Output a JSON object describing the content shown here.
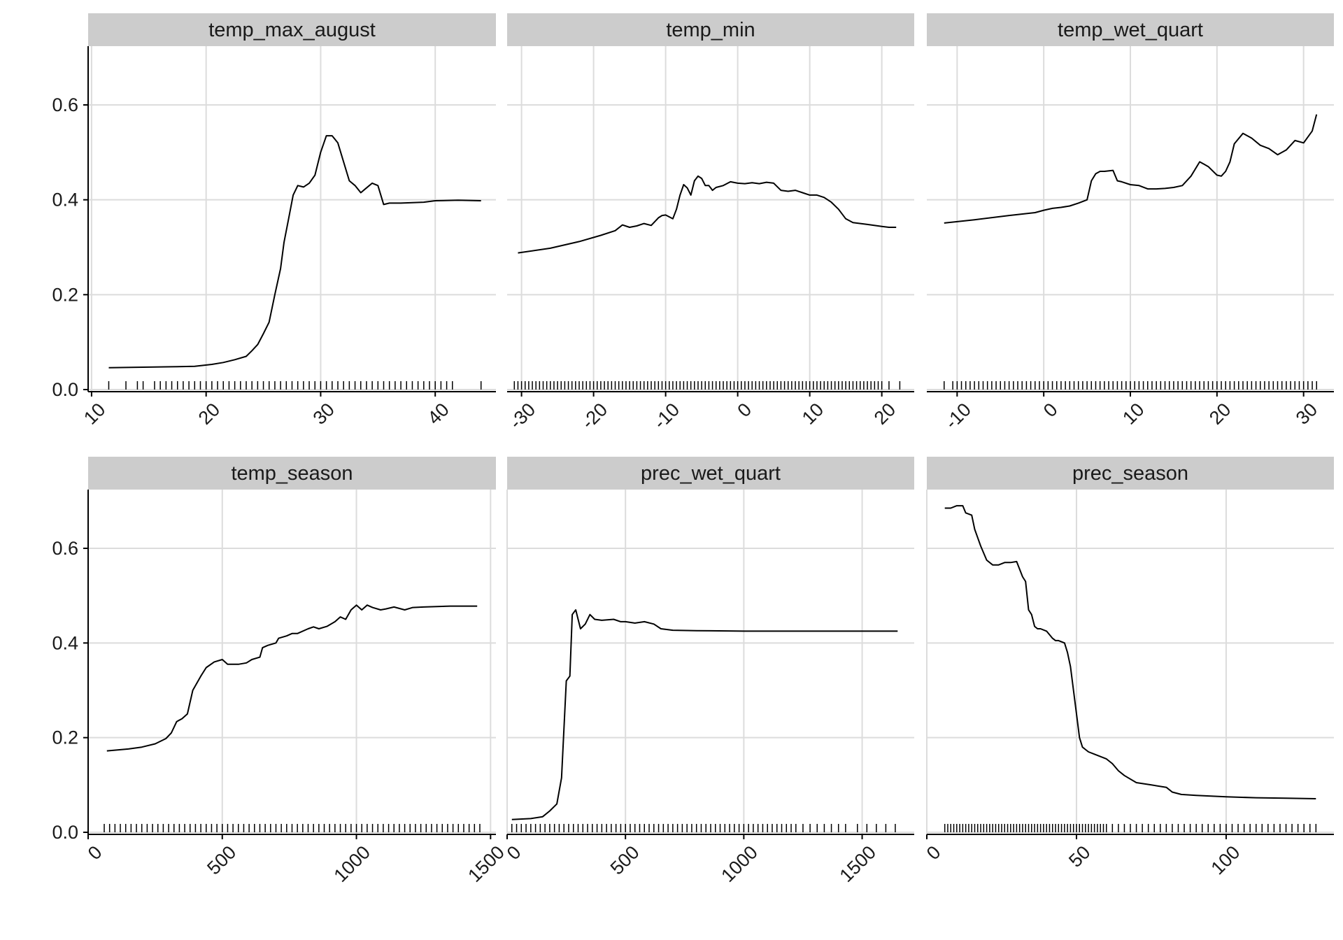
{
  "chart_data": [
    {
      "type": "line",
      "title": "temp_max_august",
      "xlim": [
        9.7,
        45.3
      ],
      "ylim": [
        0,
        0.72
      ],
      "xticks": [
        10,
        20,
        30,
        40
      ],
      "xtick_labels": [
        "10",
        "20",
        "30",
        "40"
      ],
      "yticks": [
        0.0,
        0.2,
        0.4,
        0.6
      ],
      "ytick_labels": [
        "0.0",
        "0.2",
        "0.4",
        "0.6"
      ],
      "grid": true,
      "x": [
        11.5,
        14,
        17,
        19,
        20.5,
        21.5,
        22.5,
        23.5,
        24,
        24.5,
        25,
        25.5,
        26,
        26.5,
        26.8,
        27.2,
        27.6,
        28,
        28.5,
        29,
        29.5,
        30,
        30.5,
        31,
        31.5,
        32,
        32.5,
        33,
        33.5,
        34,
        34.5,
        35,
        35.5,
        36,
        37,
        38,
        39,
        40,
        42,
        44
      ],
      "y": [
        0.046,
        0.047,
        0.048,
        0.049,
        0.053,
        0.057,
        0.063,
        0.07,
        0.082,
        0.095,
        0.118,
        0.142,
        0.2,
        0.255,
        0.31,
        0.36,
        0.41,
        0.43,
        0.427,
        0.435,
        0.452,
        0.5,
        0.535,
        0.535,
        0.52,
        0.48,
        0.44,
        0.43,
        0.415,
        0.425,
        0.435,
        0.43,
        0.39,
        0.393,
        0.393,
        0.394,
        0.395,
        0.398,
        0.399,
        0.398
      ],
      "rug": [
        11.5,
        13,
        14,
        14.5,
        15.5,
        16,
        16.5,
        17,
        17.5,
        18,
        18.5,
        19,
        19.5,
        20,
        20.5,
        21,
        21.5,
        22,
        22.5,
        23,
        23.5,
        24,
        24.5,
        25,
        25.5,
        26,
        26.5,
        27,
        27.5,
        28,
        28.5,
        29,
        29.5,
        30,
        30.5,
        31,
        31.5,
        32,
        32.5,
        33,
        33.5,
        34,
        34.5,
        35,
        35.5,
        36,
        36.5,
        37,
        37.5,
        38,
        38.5,
        39,
        39.5,
        40,
        40.5,
        41,
        41.5,
        44
      ]
    },
    {
      "type": "line",
      "title": "temp_min",
      "xlim": [
        -32,
        24.5
      ],
      "ylim": [
        0,
        0.72
      ],
      "xticks": [
        -30,
        -20,
        -10,
        0,
        10,
        20
      ],
      "xtick_labels": [
        "-30",
        "-20",
        "-10",
        "0",
        "10",
        "20"
      ],
      "yticks": [
        0.0,
        0.2,
        0.4,
        0.6
      ],
      "ytick_labels": [
        "0.0",
        "0.2",
        "0.4",
        "0.6"
      ],
      "grid": true,
      "x": [
        -30.5,
        -26,
        -22,
        -19,
        -17,
        -16,
        -15,
        -14,
        -13,
        -12,
        -11,
        -10.5,
        -10,
        -9,
        -8.5,
        -8,
        -7.5,
        -7,
        -6.5,
        -6,
        -5.5,
        -5,
        -4.5,
        -4,
        -3.5,
        -3,
        -2,
        -1,
        0,
        1,
        2,
        3,
        4,
        5,
        6,
        7,
        8,
        9,
        10,
        11,
        12,
        13,
        14,
        15,
        16,
        18,
        20,
        21,
        22
      ],
      "y": [
        0.288,
        0.298,
        0.312,
        0.325,
        0.335,
        0.347,
        0.342,
        0.345,
        0.35,
        0.346,
        0.362,
        0.367,
        0.368,
        0.36,
        0.38,
        0.41,
        0.432,
        0.425,
        0.41,
        0.44,
        0.45,
        0.445,
        0.43,
        0.43,
        0.42,
        0.426,
        0.43,
        0.438,
        0.435,
        0.434,
        0.436,
        0.434,
        0.437,
        0.435,
        0.42,
        0.418,
        0.42,
        0.415,
        0.41,
        0.41,
        0.405,
        0.395,
        0.38,
        0.36,
        0.352,
        0.348,
        0.344,
        0.342,
        0.342
      ],
      "rug": [
        -31,
        -30.5,
        -30,
        -29.5,
        -29,
        -28.5,
        -28,
        -27.5,
        -27,
        -26.5,
        -26,
        -25.5,
        -25,
        -24.5,
        -24,
        -23.5,
        -23,
        -22.5,
        -22,
        -21.5,
        -21,
        -20.5,
        -20,
        -19.5,
        -19,
        -18.5,
        -18,
        -17.5,
        -17,
        -16.5,
        -16,
        -15.5,
        -15,
        -14.5,
        -14,
        -13.5,
        -13,
        -12.5,
        -12,
        -11.5,
        -11,
        -10.5,
        -10,
        -9.5,
        -9,
        -8.5,
        -8,
        -7.5,
        -7,
        -6.5,
        -6,
        -5.5,
        -5,
        -4.5,
        -4,
        -3.5,
        -3,
        -2.5,
        -2,
        -1.5,
        -1,
        -0.5,
        0,
        0.5,
        1,
        1.5,
        2,
        2.5,
        3,
        3.5,
        4,
        4.5,
        5,
        5.5,
        6,
        6.5,
        7,
        7.5,
        8,
        8.5,
        9,
        9.5,
        10,
        10.5,
        11,
        11.5,
        12,
        12.5,
        13,
        13.5,
        14,
        14.5,
        15,
        15.5,
        16,
        16.5,
        17,
        17.5,
        18,
        18.5,
        19,
        19.5,
        20,
        21,
        22.5
      ]
    },
    {
      "type": "line",
      "title": "temp_wet_quart",
      "xlim": [
        -13.5,
        33.5
      ],
      "ylim": [
        0,
        0.72
      ],
      "xticks": [
        -10,
        0,
        10,
        20,
        30
      ],
      "xtick_labels": [
        "-10",
        "0",
        "10",
        "20",
        "30"
      ],
      "yticks": [
        0.0,
        0.2,
        0.4,
        0.6
      ],
      "ytick_labels": [
        "0.0",
        "0.2",
        "0.4",
        "0.6"
      ],
      "grid": true,
      "x": [
        -11.5,
        -8,
        -4,
        -1,
        0,
        1,
        2,
        3,
        4,
        5,
        5.5,
        6,
        6.5,
        7,
        8,
        8.5,
        9,
        10,
        11,
        12,
        13,
        14,
        15,
        16,
        17,
        18,
        18.5,
        19,
        20,
        20.5,
        21,
        21.5,
        22,
        23,
        24,
        25,
        26,
        27,
        28,
        29,
        30,
        31,
        31.5
      ],
      "y": [
        0.351,
        0.358,
        0.367,
        0.373,
        0.378,
        0.382,
        0.384,
        0.387,
        0.393,
        0.4,
        0.44,
        0.455,
        0.46,
        0.46,
        0.462,
        0.44,
        0.438,
        0.432,
        0.43,
        0.423,
        0.423,
        0.424,
        0.426,
        0.43,
        0.45,
        0.48,
        0.475,
        0.47,
        0.452,
        0.45,
        0.46,
        0.48,
        0.518,
        0.54,
        0.53,
        0.515,
        0.508,
        0.495,
        0.505,
        0.525,
        0.52,
        0.545,
        0.58
      ],
      "rug": [
        -11.5,
        -10.5,
        -10,
        -9.5,
        -9,
        -8.5,
        -8,
        -7.5,
        -7,
        -6.5,
        -6,
        -5.5,
        -5,
        -4.5,
        -4,
        -3.5,
        -3,
        -2.5,
        -2,
        -1.5,
        -1,
        -0.5,
        0,
        0.5,
        1,
        1.5,
        2,
        2.5,
        3,
        3.5,
        4,
        4.5,
        5,
        5.5,
        6,
        6.5,
        7,
        7.5,
        8,
        8.5,
        9,
        9.5,
        10,
        10.5,
        11,
        11.5,
        12,
        12.5,
        13,
        13.5,
        14,
        14.5,
        15,
        15.5,
        16,
        16.5,
        17,
        17.5,
        18,
        18.5,
        19,
        19.5,
        20,
        20.5,
        21,
        21.5,
        22,
        22.5,
        23,
        23.5,
        24,
        24.5,
        25,
        25.5,
        26,
        26.5,
        27,
        27.5,
        28,
        28.5,
        29,
        29.5,
        30,
        30.5,
        31,
        31.5
      ]
    },
    {
      "type": "line",
      "title": "temp_season",
      "xlim": [
        0,
        1520
      ],
      "ylim": [
        0,
        0.72
      ],
      "xticks": [
        0,
        500,
        1000,
        1500
      ],
      "xtick_labels": [
        "0",
        "500",
        "1000",
        "1500"
      ],
      "yticks": [
        0.0,
        0.2,
        0.4,
        0.6
      ],
      "ytick_labels": [
        "0.0",
        "0.2",
        "0.4",
        "0.6"
      ],
      "grid": true,
      "x": [
        70,
        150,
        200,
        250,
        290,
        310,
        330,
        350,
        370,
        390,
        420,
        440,
        470,
        500,
        520,
        560,
        590,
        610,
        640,
        650,
        670,
        700,
        710,
        740,
        760,
        780,
        820,
        840,
        860,
        890,
        920,
        940,
        960,
        980,
        1000,
        1020,
        1040,
        1060,
        1090,
        1110,
        1140,
        1180,
        1210,
        1250,
        1300,
        1350,
        1400,
        1450
      ],
      "y": [
        0.172,
        0.176,
        0.18,
        0.187,
        0.198,
        0.21,
        0.234,
        0.24,
        0.25,
        0.3,
        0.33,
        0.348,
        0.36,
        0.365,
        0.355,
        0.355,
        0.358,
        0.365,
        0.37,
        0.39,
        0.395,
        0.4,
        0.41,
        0.415,
        0.42,
        0.42,
        0.43,
        0.434,
        0.43,
        0.435,
        0.445,
        0.455,
        0.45,
        0.47,
        0.48,
        0.47,
        0.48,
        0.475,
        0.47,
        0.472,
        0.476,
        0.47,
        0.475,
        0.476,
        0.477,
        0.478,
        0.478,
        0.478
      ],
      "rug": [
        60,
        80,
        100,
        120,
        140,
        160,
        180,
        200,
        220,
        240,
        260,
        280,
        300,
        320,
        340,
        360,
        380,
        400,
        420,
        440,
        460,
        480,
        500,
        520,
        540,
        560,
        580,
        600,
        620,
        640,
        660,
        680,
        700,
        720,
        740,
        760,
        780,
        800,
        820,
        840,
        860,
        880,
        900,
        920,
        940,
        960,
        980,
        1000,
        1020,
        1040,
        1060,
        1080,
        1100,
        1120,
        1140,
        1160,
        1180,
        1200,
        1220,
        1240,
        1260,
        1280,
        1300,
        1320,
        1340,
        1360,
        1380,
        1400,
        1420,
        1440,
        1460
      ]
    },
    {
      "type": "line",
      "title": "prec_wet_quart",
      "xlim": [
        0,
        1720
      ],
      "ylim": [
        0,
        0.72
      ],
      "xticks": [
        0,
        500,
        1000,
        1500
      ],
      "xtick_labels": [
        "0",
        "500",
        "1000",
        "1500"
      ],
      "yticks": [
        0.0,
        0.2,
        0.4,
        0.6
      ],
      "ytick_labels": [
        "0.0",
        "0.2",
        "0.4",
        "0.6"
      ],
      "grid": true,
      "x": [
        20,
        100,
        150,
        180,
        210,
        230,
        250,
        265,
        275,
        290,
        310,
        330,
        350,
        370,
        400,
        450,
        480,
        500,
        540,
        580,
        620,
        650,
        700,
        800,
        1000,
        1200,
        1400,
        1600,
        1650
      ],
      "y": [
        0.027,
        0.029,
        0.033,
        0.045,
        0.06,
        0.115,
        0.32,
        0.33,
        0.46,
        0.47,
        0.43,
        0.44,
        0.46,
        0.45,
        0.448,
        0.45,
        0.445,
        0.445,
        0.442,
        0.445,
        0.44,
        0.43,
        0.427,
        0.426,
        0.425,
        0.425,
        0.425,
        0.425,
        0.425
      ],
      "rug": [
        20,
        40,
        60,
        80,
        100,
        120,
        140,
        160,
        180,
        200,
        220,
        240,
        260,
        280,
        300,
        320,
        340,
        360,
        380,
        400,
        420,
        440,
        460,
        480,
        500,
        520,
        540,
        560,
        580,
        600,
        620,
        640,
        660,
        680,
        700,
        720,
        740,
        760,
        780,
        800,
        820,
        840,
        860,
        880,
        900,
        920,
        940,
        960,
        980,
        1000,
        1020,
        1040,
        1060,
        1080,
        1100,
        1120,
        1140,
        1160,
        1180,
        1200,
        1220,
        1250,
        1280,
        1310,
        1340,
        1370,
        1400,
        1430,
        1480,
        1520,
        1560,
        1600,
        1640
      ]
    },
    {
      "type": "line",
      "title": "prec_season",
      "xlim": [
        0,
        136
      ],
      "ylim": [
        0,
        0.72
      ],
      "xticks": [
        0,
        50,
        100
      ],
      "xtick_labels": [
        "0",
        "50",
        "100"
      ],
      "yticks": [
        0.0,
        0.2,
        0.4,
        0.6
      ],
      "ytick_labels": [
        "0.0",
        "0.2",
        "0.4",
        "0.6"
      ],
      "grid": true,
      "x": [
        6,
        8,
        10,
        12,
        13,
        15,
        16,
        18,
        20,
        22,
        24,
        26,
        28,
        30,
        32,
        33,
        34,
        35,
        36,
        37,
        38,
        40,
        42,
        43,
        44,
        46,
        47,
        48,
        49,
        50,
        51,
        52,
        53,
        54,
        56,
        58,
        60,
        62,
        64,
        66,
        70,
        75,
        80,
        82,
        85,
        90,
        100,
        110,
        120,
        130
      ],
      "y": [
        0.685,
        0.685,
        0.69,
        0.69,
        0.675,
        0.67,
        0.64,
        0.605,
        0.575,
        0.565,
        0.565,
        0.57,
        0.57,
        0.572,
        0.54,
        0.53,
        0.47,
        0.46,
        0.435,
        0.43,
        0.43,
        0.425,
        0.41,
        0.405,
        0.405,
        0.4,
        0.38,
        0.35,
        0.3,
        0.25,
        0.2,
        0.18,
        0.175,
        0.17,
        0.165,
        0.16,
        0.155,
        0.145,
        0.13,
        0.12,
        0.105,
        0.1,
        0.095,
        0.085,
        0.08,
        0.078,
        0.075,
        0.073,
        0.072,
        0.071
      ],
      "rug": [
        6,
        7,
        8,
        9,
        10,
        11,
        12,
        13,
        14,
        15,
        16,
        17,
        18,
        19,
        20,
        21,
        22,
        23,
        24,
        25,
        26,
        27,
        28,
        29,
        30,
        31,
        32,
        33,
        34,
        35,
        36,
        37,
        38,
        39,
        40,
        41,
        42,
        43,
        44,
        45,
        46,
        47,
        48,
        49,
        50,
        51,
        52,
        53,
        54,
        55,
        56,
        57,
        58,
        59,
        60,
        62,
        64,
        66,
        68,
        70,
        72,
        74,
        76,
        78,
        80,
        82,
        84,
        86,
        88,
        90,
        92,
        94,
        96,
        98,
        100,
        102,
        104,
        106,
        108,
        110,
        112,
        114,
        116,
        118,
        120,
        122,
        124,
        126,
        128,
        130
      ]
    }
  ]
}
